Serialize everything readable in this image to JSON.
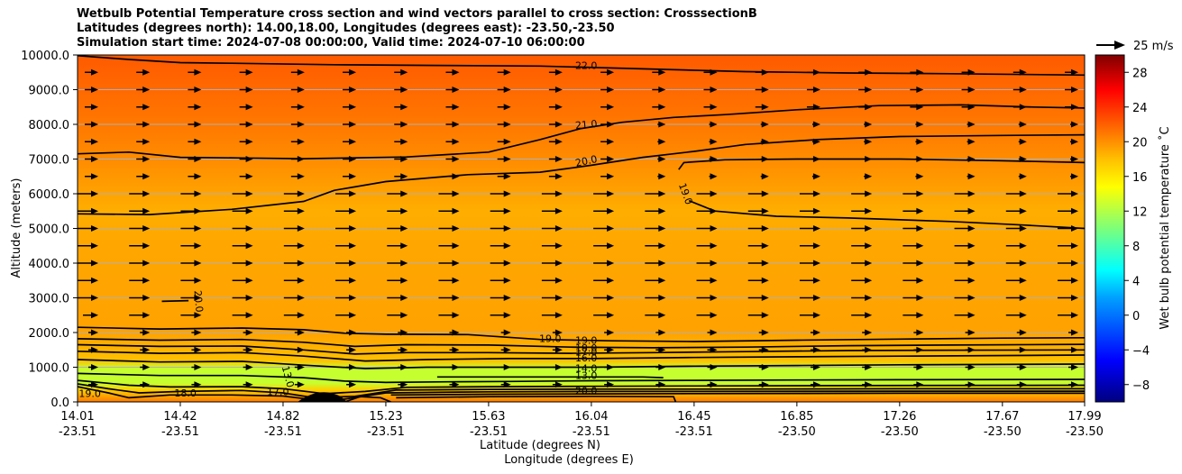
{
  "title_lines": [
    "Wetbulb Potential Temperature cross section and wind vectors parallel to cross section: CrosssectionB",
    "Latitudes (degrees north): 14.00,18.00, Longitudes (degrees east): -23.50,-23.50",
    "Simulation start time: 2024-07-08 00:00:00, Valid time: 2024-07-10 06:00:00"
  ],
  "chart_data": {
    "type": "contour-cross-section",
    "ylabel": "Altitude (meters)",
    "xlabel_line1": "Latitude (degrees N)",
    "xlabel_line2": "Longitude (degrees E)",
    "ylim": [
      0,
      10000
    ],
    "y_ticks": [
      "0.0",
      "1000.0",
      "2000.0",
      "3000.0",
      "4000.0",
      "5000.0",
      "6000.0",
      "7000.0",
      "8000.0",
      "9000.0",
      "10000.0"
    ],
    "x_ticks_lat": [
      "14.01",
      "14.42",
      "14.82",
      "15.23",
      "15.63",
      "16.04",
      "16.45",
      "16.85",
      "17.26",
      "17.67",
      "17.99"
    ],
    "x_ticks_lon": [
      "-23.51",
      "-23.51",
      "-23.51",
      "-23.51",
      "-23.51",
      "-23.51",
      "-23.51",
      "-23.50",
      "-23.50",
      "-23.50",
      "-23.50"
    ],
    "x_tick_positions": [
      0,
      1,
      2,
      3,
      4,
      5,
      6,
      7,
      8,
      9,
      9.8
    ],
    "x_range": [
      0,
      9.8
    ],
    "grid_horizontal": true,
    "colorbar": {
      "label": "Wet bulb potential temperature ˚C",
      "range": [
        -10,
        30
      ],
      "ticks": [
        "−8",
        "−4",
        "0",
        "4",
        "8",
        "12",
        "16",
        "20",
        "24",
        "28"
      ],
      "tick_values": [
        -8,
        -4,
        0,
        4,
        8,
        12,
        16,
        20,
        24,
        28
      ]
    },
    "quiver_key": {
      "label": "25 m/s"
    },
    "contour_labels": [
      {
        "text": "22.0",
        "x": 4.95,
        "y": 9700
      },
      {
        "text": "21.0",
        "x": 4.95,
        "y": 8000
      },
      {
        "text": "20.0",
        "x": 4.95,
        "y": 6950
      },
      {
        "text": "19.0",
        "x": 5.92,
        "y": 6000
      },
      {
        "text": "20.0",
        "x": 1.18,
        "y": 2900
      },
      {
        "text": "19.0",
        "x": 4.6,
        "y": 1830
      },
      {
        "text": "19.0",
        "x": 4.95,
        "y": 1780
      },
      {
        "text": "18.0",
        "x": 4.95,
        "y": 1560
      },
      {
        "text": "17.0",
        "x": 4.95,
        "y": 1440
      },
      {
        "text": "16.0",
        "x": 4.95,
        "y": 1270
      },
      {
        "text": "14.0",
        "x": 4.95,
        "y": 980
      },
      {
        "text": "13.0",
        "x": 4.95,
        "y": 760
      },
      {
        "text": "13.0",
        "x": 2.05,
        "y": 730
      },
      {
        "text": "20.0",
        "x": 4.95,
        "y": 330
      },
      {
        "text": "18.0",
        "x": 1.05,
        "y": 260
      },
      {
        "text": "17.0",
        "x": 1.95,
        "y": 300
      },
      {
        "text": "19.0",
        "x": 0.12,
        "y": 250
      }
    ],
    "contours": [
      {
        "level": 22,
        "points": [
          [
            0,
            9980
          ],
          [
            0.5,
            9870
          ],
          [
            1.0,
            9780
          ],
          [
            1.5,
            9760
          ],
          [
            2.5,
            9720
          ],
          [
            3.5,
            9700
          ],
          [
            4.5,
            9680
          ],
          [
            5.5,
            9600
          ],
          [
            6.5,
            9520
          ],
          [
            7.5,
            9480
          ],
          [
            8.5,
            9460
          ],
          [
            9.8,
            9420
          ]
        ]
      },
      {
        "level": 21,
        "points": [
          [
            0,
            7150
          ],
          [
            0.5,
            7200
          ],
          [
            1.0,
            7050
          ],
          [
            1.6,
            7030
          ],
          [
            2.2,
            7010
          ],
          [
            3.2,
            7060
          ],
          [
            4.0,
            7200
          ],
          [
            4.5,
            7560
          ],
          [
            4.9,
            7880
          ],
          [
            5.3,
            8060
          ],
          [
            5.8,
            8200
          ],
          [
            6.3,
            8280
          ],
          [
            7.0,
            8420
          ],
          [
            7.8,
            8540
          ],
          [
            8.6,
            8560
          ],
          [
            9.3,
            8500
          ],
          [
            9.8,
            8470
          ]
        ]
      },
      {
        "level": 20,
        "points": [
          [
            0,
            5420
          ],
          [
            0.7,
            5400
          ],
          [
            1.5,
            5550
          ],
          [
            2.2,
            5780
          ],
          [
            2.5,
            6100
          ],
          [
            3.0,
            6350
          ],
          [
            3.8,
            6550
          ],
          [
            4.5,
            6620
          ],
          [
            5.0,
            6820
          ],
          [
            5.5,
            7050
          ],
          [
            6.0,
            7220
          ],
          [
            6.5,
            7420
          ],
          [
            7.2,
            7560
          ],
          [
            8.0,
            7650
          ],
          [
            9.0,
            7680
          ],
          [
            9.8,
            7700
          ]
        ]
      },
      {
        "level": 19,
        "points": [
          [
            5.85,
            6700
          ],
          [
            5.9,
            6900
          ],
          [
            6.3,
            6980
          ],
          [
            7.0,
            7000
          ],
          [
            8.0,
            7000
          ],
          [
            9.0,
            6950
          ],
          [
            9.8,
            6900
          ]
        ]
      },
      {
        "level": 19,
        "points": [
          [
            5.95,
            5800
          ],
          [
            6.2,
            5500
          ],
          [
            6.8,
            5350
          ],
          [
            7.5,
            5300
          ],
          [
            8.5,
            5200
          ],
          [
            9.2,
            5100
          ],
          [
            9.8,
            5000
          ]
        ]
      },
      {
        "level": 20,
        "points": [
          [
            0.82,
            2900
          ],
          [
            1.08,
            2920
          ]
        ]
      },
      {
        "level": 19,
        "points": [
          [
            0,
            2150
          ],
          [
            0.8,
            2100
          ],
          [
            1.6,
            2130
          ],
          [
            2.2,
            2080
          ],
          [
            2.6,
            1980
          ],
          [
            3.0,
            1950
          ],
          [
            3.8,
            1940
          ],
          [
            4.5,
            1800
          ],
          [
            5.2,
            1760
          ],
          [
            6.0,
            1740
          ],
          [
            7.0,
            1780
          ],
          [
            8.0,
            1810
          ],
          [
            9.0,
            1840
          ],
          [
            9.8,
            1850
          ]
        ]
      },
      {
        "level": 18,
        "points": [
          [
            0,
            1820
          ],
          [
            0.8,
            1780
          ],
          [
            1.6,
            1800
          ],
          [
            2.2,
            1720
          ],
          [
            2.7,
            1600
          ],
          [
            3.2,
            1650
          ],
          [
            4.0,
            1640
          ],
          [
            4.8,
            1580
          ],
          [
            5.6,
            1560
          ],
          [
            6.5,
            1580
          ],
          [
            7.5,
            1620
          ],
          [
            8.5,
            1640
          ],
          [
            9.8,
            1660
          ]
        ]
      },
      {
        "level": 17,
        "points": [
          [
            0,
            1650
          ],
          [
            0.8,
            1600
          ],
          [
            1.6,
            1610
          ],
          [
            2.2,
            1500
          ],
          [
            2.7,
            1380
          ],
          [
            3.2,
            1420
          ],
          [
            4.0,
            1420
          ],
          [
            4.8,
            1400
          ],
          [
            5.6,
            1420
          ],
          [
            6.5,
            1450
          ],
          [
            7.5,
            1480
          ],
          [
            8.5,
            1490
          ],
          [
            9.8,
            1500
          ]
        ]
      },
      {
        "level": 16,
        "points": [
          [
            0,
            1460
          ],
          [
            0.8,
            1400
          ],
          [
            1.6,
            1420
          ],
          [
            2.2,
            1320
          ],
          [
            2.8,
            1180
          ],
          [
            3.4,
            1220
          ],
          [
            4.2,
            1250
          ],
          [
            5.0,
            1250
          ],
          [
            6.0,
            1280
          ],
          [
            7.0,
            1300
          ],
          [
            8.0,
            1320
          ],
          [
            9.8,
            1350
          ]
        ]
      },
      {
        "level": 14,
        "points": [
          [
            0,
            1220
          ],
          [
            0.8,
            1150
          ],
          [
            1.6,
            1170
          ],
          [
            2.2,
            1060
          ],
          [
            2.8,
            960
          ],
          [
            3.4,
            1000
          ],
          [
            4.2,
            1000
          ],
          [
            5.0,
            1000
          ],
          [
            6.0,
            1030
          ],
          [
            7.0,
            1050
          ],
          [
            8.0,
            1070
          ],
          [
            9.8,
            1090
          ]
        ]
      },
      {
        "level": 13,
        "points": [
          [
            0,
            820
          ],
          [
            0.8,
            760
          ],
          [
            1.6,
            760
          ],
          [
            2.2,
            700
          ],
          [
            2.6,
            600
          ],
          [
            3.0,
            560
          ],
          [
            3.6,
            580
          ],
          [
            4.2,
            590
          ],
          [
            5.0,
            610
          ],
          [
            6.0,
            620
          ],
          [
            7.0,
            630
          ],
          [
            8.0,
            640
          ],
          [
            9.8,
            650
          ]
        ]
      },
      {
        "level": 13,
        "points": [
          [
            3.5,
            720
          ],
          [
            4.5,
            720
          ],
          [
            5.5,
            720
          ],
          [
            5.7,
            700
          ]
        ]
      },
      {
        "level": 14,
        "points": [
          [
            0,
            620
          ],
          [
            0.5,
            480
          ],
          [
            0.9,
            430
          ],
          [
            1.6,
            440
          ],
          [
            2.0,
            380
          ],
          [
            2.4,
            240
          ],
          [
            2.8,
            300
          ],
          [
            3.2,
            420
          ],
          [
            4.0,
            440
          ],
          [
            5.0,
            450
          ],
          [
            6.0,
            460
          ],
          [
            7.5,
            470
          ],
          [
            9.8,
            480
          ]
        ]
      },
      {
        "level": 16,
        "points": [
          [
            0,
            520
          ],
          [
            0.3,
            380
          ],
          [
            0.6,
            260
          ],
          [
            1.0,
            300
          ],
          [
            1.6,
            330
          ],
          [
            2.0,
            260
          ],
          [
            2.3,
            120
          ],
          [
            2.7,
            160
          ],
          [
            3.1,
            340
          ],
          [
            4.0,
            360
          ],
          [
            5.0,
            370
          ],
          [
            6.0,
            370
          ],
          [
            8.0,
            380
          ],
          [
            9.8,
            380
          ]
        ]
      },
      {
        "level": 18,
        "points": [
          [
            0,
            440
          ],
          [
            0.3,
            260
          ],
          [
            0.5,
            120
          ],
          [
            0.9,
            200
          ],
          [
            1.5,
            200
          ],
          [
            2.0,
            170
          ],
          [
            2.3,
            60
          ],
          [
            2.6,
            80
          ],
          [
            3.0,
            260
          ],
          [
            4.0,
            290
          ],
          [
            5.0,
            300
          ],
          [
            6.0,
            300
          ],
          [
            8.0,
            310
          ],
          [
            9.8,
            310
          ]
        ]
      },
      {
        "level": 19,
        "points": [
          [
            3.05,
            200
          ],
          [
            4.0,
            220
          ],
          [
            5.0,
            230
          ],
          [
            6.0,
            240
          ],
          [
            8.0,
            250
          ],
          [
            9.8,
            250
          ]
        ]
      },
      {
        "level": 20,
        "points": [
          [
            3.1,
            120
          ],
          [
            4.0,
            150
          ],
          [
            5.0,
            160
          ],
          [
            5.8,
            150
          ],
          [
            5.82,
            0
          ]
        ]
      },
      {
        "level": 21,
        "points": [
          [
            2.6,
            0
          ],
          [
            2.75,
            150
          ],
          [
            2.95,
            120
          ],
          [
            3.05,
            0
          ]
        ]
      }
    ]
  }
}
